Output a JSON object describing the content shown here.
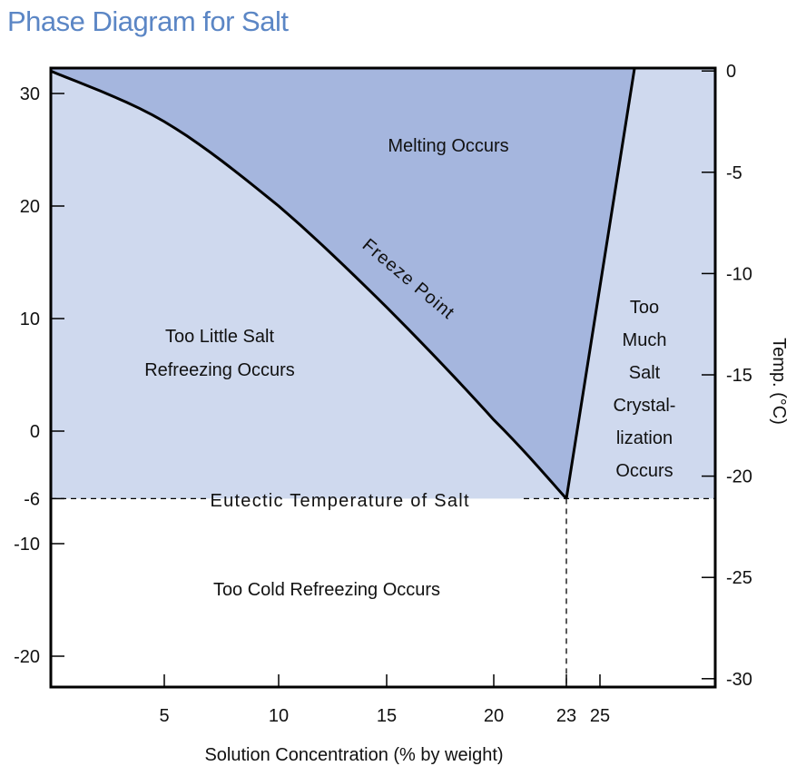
{
  "title": "Phase Diagram for Salt",
  "colors": {
    "title": "#5b86c5",
    "light_region": "#cfd9ee",
    "melt_region": "#a5b6de",
    "line": "#000000"
  },
  "chart_data": {
    "type": "line",
    "title": "Phase Diagram for Salt",
    "xlabel": "Solution Concentration (% by weight)",
    "ylabel_right": "Temp. (°C)",
    "x_ticks": [
      5,
      10,
      15,
      20,
      23,
      25
    ],
    "y_left_ticks": [
      30,
      20,
      10,
      0,
      -6,
      -10,
      -20
    ],
    "y_right_ticks": [
      0,
      -5,
      -10,
      -15,
      -20,
      -25,
      -30
    ],
    "xlim": [
      0,
      30
    ],
    "ylim_left": [
      -23,
      32
    ],
    "freeze_point_curve": {
      "name": "Freeze Point",
      "x": [
        0,
        5,
        10,
        15,
        20,
        23
      ],
      "y": [
        32,
        27.5,
        20,
        11,
        1,
        -6
      ]
    },
    "saturation_line": {
      "x": [
        23,
        26.5
      ],
      "y": [
        -6,
        32
      ]
    },
    "eutectic": {
      "x": 23,
      "y": -6,
      "label": "Eutectic Temperature of Salt"
    },
    "regions": {
      "melting": "Melting Occurs",
      "too_little_salt": [
        "Too Little Salt",
        "Refreezing Occurs"
      ],
      "too_much_salt": [
        "Too",
        "Much",
        "Salt",
        "Crystal-",
        "lization",
        "Occurs"
      ],
      "too_cold": "Too Cold Refreezing Occurs"
    }
  }
}
